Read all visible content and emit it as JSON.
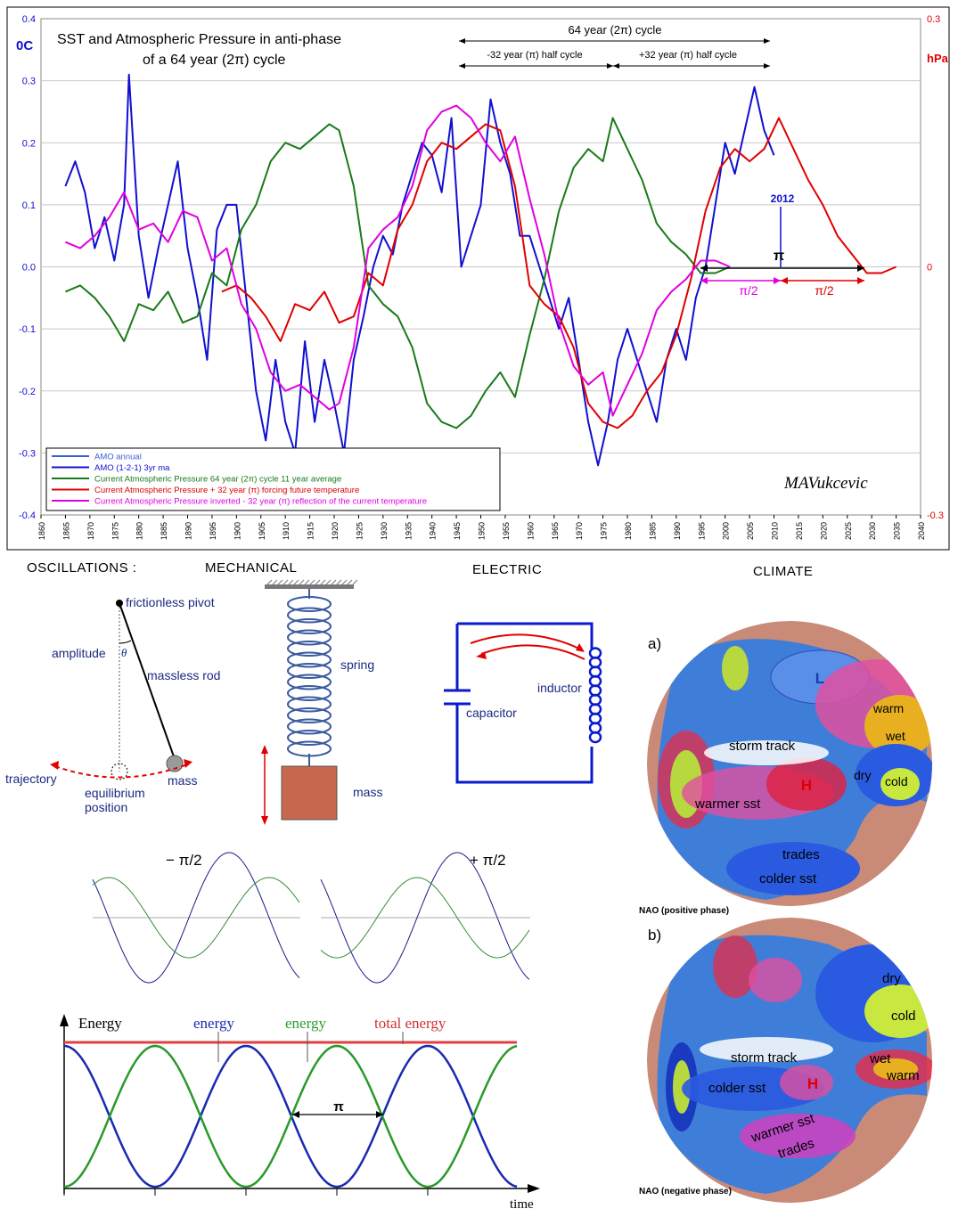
{
  "chart_data": {
    "type": "line",
    "title_line1": "SST and Atmospheric Pressure in anti-phase",
    "title_line2": "of a 64 year (2π) cycle",
    "left_unit": "0C",
    "right_unit": "hPa",
    "ylim": [
      -0.4,
      0.4
    ],
    "y2lim": [
      -0.3,
      0.3
    ],
    "xlim": [
      1860,
      2040
    ],
    "left_ticks": [
      "0.4",
      "0.3",
      "0.2",
      "0.1",
      "0.0",
      "-0.1",
      "-0.2",
      "-0.3",
      "-0.4"
    ],
    "right_ticks": [
      "0.3",
      "0",
      "-0.3"
    ],
    "x_ticks": [
      "1860",
      "1865",
      "1870",
      "1875",
      "1880",
      "1885",
      "1890",
      "1895",
      "1900",
      "1905",
      "1910",
      "1915",
      "1920",
      "1925",
      "1930",
      "1935",
      "1940",
      "1945",
      "1950",
      "1955",
      "1960",
      "1965",
      "1970",
      "1975",
      "1980",
      "1985",
      "1990",
      "1995",
      "2000",
      "2005",
      "2010",
      "2015",
      "2020",
      "2025",
      "2030",
      "2035",
      "2040"
    ],
    "annotations": {
      "full_cycle": "64 year (2π) cycle",
      "half_minus": "-32 year (π) half cycle",
      "half_plus": "+32 year (π) half cycle",
      "year_2012": "2012",
      "pi": "π",
      "pi_half_a": "π/2",
      "pi_half_b": "π/2",
      "signature": "MAVukcevic"
    },
    "legend": [
      {
        "label": "AMO annual",
        "color": "#3a5fd9"
      },
      {
        "label": "AMO (1-2-1) 3yr ma",
        "color": "#1010d0"
      },
      {
        "label": "Current Atmospheric Pressure 64 year (2π) cycle 11 year average",
        "color": "#1a7a1a"
      },
      {
        "label": "Current Atmospheric Pressure + 32 year (π) forcing future temperature",
        "color": "#e00000"
      },
      {
        "label": "Current Atmospheric Pressure inverted - 32 year (π) reflection of the current temperature",
        "color": "#e000e0"
      }
    ],
    "series": [
      {
        "name": "AMO (1-2-1) 3yr ma",
        "axis": "left",
        "color": "#1010d0",
        "x": [
          1865,
          1867,
          1869,
          1871,
          1873,
          1875,
          1877,
          1878,
          1880,
          1882,
          1884,
          1886,
          1888,
          1890,
          1892,
          1894,
          1896,
          1898,
          1900,
          1902,
          1904,
          1906,
          1908,
          1910,
          1912,
          1914,
          1916,
          1918,
          1920,
          1922,
          1924,
          1926,
          1928,
          1930,
          1932,
          1934,
          1936,
          1938,
          1940,
          1942,
          1944,
          1946,
          1948,
          1950,
          1952,
          1954,
          1956,
          1958,
          1960,
          1962,
          1964,
          1966,
          1968,
          1970,
          1972,
          1974,
          1976,
          1978,
          1980,
          1982,
          1984,
          1986,
          1988,
          1990,
          1992,
          1994,
          1996,
          1998,
          2000,
          2002,
          2004,
          2006,
          2008,
          2010
        ],
        "y": [
          0.13,
          0.17,
          0.12,
          0.03,
          0.08,
          0.01,
          0.1,
          0.31,
          0.05,
          -0.05,
          0.03,
          0.1,
          0.17,
          0.03,
          -0.05,
          -0.15,
          0.06,
          0.1,
          0.1,
          -0.05,
          -0.2,
          -0.28,
          -0.15,
          -0.25,
          -0.3,
          -0.12,
          -0.25,
          -0.15,
          -0.22,
          -0.3,
          -0.15,
          -0.08,
          0.0,
          0.05,
          0.02,
          0.1,
          0.15,
          0.2,
          0.18,
          0.12,
          0.24,
          0.0,
          0.05,
          0.1,
          0.27,
          0.2,
          0.15,
          0.05,
          0.05,
          0.0,
          -0.05,
          -0.1,
          -0.05,
          -0.15,
          -0.25,
          -0.32,
          -0.25,
          -0.15,
          -0.1,
          -0.15,
          -0.2,
          -0.25,
          -0.15,
          -0.1,
          -0.15,
          -0.05,
          0.0,
          0.1,
          0.2,
          0.15,
          0.22,
          0.29,
          0.22,
          0.18
        ]
      },
      {
        "name": "Current Atmospheric Pressure 64 year (2π) cycle 11 year average",
        "axis": "left",
        "color": "#1a7a1a",
        "x": [
          1865,
          1868,
          1871,
          1874,
          1877,
          1880,
          1883,
          1886,
          1889,
          1892,
          1895,
          1898,
          1901,
          1904,
          1907,
          1910,
          1913,
          1916,
          1919,
          1921,
          1924,
          1927,
          1930,
          1933,
          1936,
          1939,
          1942,
          1945,
          1948,
          1951,
          1954,
          1957,
          1960,
          1963,
          1966,
          1969,
          1972,
          1975,
          1977,
          1980,
          1983,
          1986,
          1989,
          1992,
          1995,
          1998,
          2001
        ],
        "y": [
          -0.04,
          -0.03,
          -0.05,
          -0.08,
          -0.12,
          -0.06,
          -0.07,
          -0.04,
          -0.09,
          -0.08,
          -0.01,
          -0.03,
          0.06,
          0.1,
          0.17,
          0.2,
          0.19,
          0.21,
          0.23,
          0.22,
          0.13,
          -0.03,
          -0.06,
          -0.08,
          -0.13,
          -0.22,
          -0.25,
          -0.26,
          -0.24,
          -0.2,
          -0.17,
          -0.21,
          -0.11,
          -0.02,
          0.09,
          0.16,
          0.19,
          0.17,
          0.24,
          0.19,
          0.14,
          0.07,
          0.04,
          0.02,
          -0.01,
          -0.01,
          0.0
        ]
      },
      {
        "name": "Current Atmospheric Pressure + 32 year (π) forcing future temperature",
        "axis": "left",
        "color": "#e00000",
        "x": [
          1897,
          1900,
          1903,
          1906,
          1909,
          1912,
          1915,
          1918,
          1921,
          1924,
          1927,
          1930,
          1933,
          1936,
          1939,
          1942,
          1945,
          1948,
          1951,
          1954,
          1957,
          1960,
          1963,
          1966,
          1969,
          1972,
          1975,
          1978,
          1981,
          1984,
          1987,
          1990,
          1993,
          1996,
          1999,
          2002,
          2005,
          2008,
          2011,
          2014,
          2017,
          2020,
          2023,
          2026,
          2029,
          2032,
          2035
        ],
        "y": [
          -0.04,
          -0.03,
          -0.05,
          -0.08,
          -0.12,
          -0.06,
          -0.07,
          -0.04,
          -0.09,
          -0.08,
          -0.01,
          -0.03,
          0.06,
          0.1,
          0.17,
          0.2,
          0.19,
          0.21,
          0.23,
          0.22,
          0.13,
          -0.03,
          -0.06,
          -0.08,
          -0.13,
          -0.22,
          -0.25,
          -0.26,
          -0.24,
          -0.2,
          -0.17,
          -0.11,
          -0.02,
          0.09,
          0.16,
          0.19,
          0.17,
          0.19,
          0.24,
          0.19,
          0.14,
          0.1,
          0.05,
          0.02,
          -0.01,
          -0.01,
          0.0
        ]
      },
      {
        "name": "Current Atmospheric Pressure inverted - 32 year (π) reflection of the current temperature",
        "axis": "left",
        "color": "#e000e0",
        "x": [
          1865,
          1868,
          1871,
          1874,
          1877,
          1880,
          1883,
          1886,
          1889,
          1892,
          1895,
          1898,
          1901,
          1904,
          1907,
          1910,
          1913,
          1916,
          1919,
          1921,
          1924,
          1927,
          1930,
          1933,
          1936,
          1939,
          1942,
          1945,
          1948,
          1951,
          1954,
          1957,
          1960,
          1963,
          1966,
          1969,
          1972,
          1975,
          1977,
          1980,
          1983,
          1986,
          1989,
          1992,
          1995,
          1998,
          2001
        ],
        "y": [
          0.04,
          0.03,
          0.05,
          0.08,
          0.12,
          0.06,
          0.07,
          0.04,
          0.09,
          0.08,
          0.01,
          0.03,
          -0.06,
          -0.1,
          -0.17,
          -0.2,
          -0.19,
          -0.21,
          -0.23,
          -0.22,
          -0.13,
          0.03,
          0.06,
          0.08,
          0.13,
          0.22,
          0.25,
          0.26,
          0.24,
          0.2,
          0.17,
          0.21,
          0.11,
          0.02,
          -0.09,
          -0.16,
          -0.19,
          -0.17,
          -0.24,
          -0.19,
          -0.14,
          -0.07,
          -0.04,
          -0.02,
          0.01,
          0.01,
          0.0
        ]
      }
    ]
  },
  "oscillations": {
    "title": "OSCILLATIONS :",
    "mechanical": "MECHANICAL",
    "electric": "ELECTRIC",
    "climate": "CLIMATE",
    "pendulum": {
      "pivot": "frictionless pivot",
      "amplitude": "amplitude",
      "theta": "θ",
      "rod": "massless rod",
      "trajectory": "trajectory",
      "equilibrium": "equilibrium",
      "position": "position",
      "mass": "mass"
    },
    "spring": {
      "spring": "spring",
      "mass": "mass"
    },
    "circuit": {
      "inductor": "inductor",
      "capacitor": "capacitor"
    },
    "phase": {
      "minus": "− π/2",
      "plus": "+ π/2"
    },
    "energy": {
      "axis": "Energy",
      "blue": "energy",
      "green": "energy",
      "total": "total energy",
      "pi": "π",
      "time": "time"
    },
    "nao": {
      "a": "a)",
      "b": "b)",
      "positive_caption": "NAO (positive phase)",
      "negative_caption": "NAO (negative phase)",
      "positive": {
        "L": "L",
        "H": "H",
        "warm": "warm",
        "wet": "wet",
        "storm": "storm  track",
        "dry": "dry",
        "cold": "cold",
        "warmer": "warmer sst",
        "trades": "trades",
        "colder": "colder sst"
      },
      "negative": {
        "dry": "dry",
        "cold": "cold",
        "storm": "storm track",
        "wet": "wet",
        "warm": "warm",
        "colder": "colder sst",
        "H": "H",
        "warmer": "warmer sst",
        "trades": "trades"
      }
    }
  },
  "colors": {
    "blue": "#1010d0",
    "green": "#1a7a1a",
    "red": "#e00000",
    "magenta": "#e000e0",
    "pressure_axis": "#e00000",
    "temp_axis": "#1010d0"
  }
}
